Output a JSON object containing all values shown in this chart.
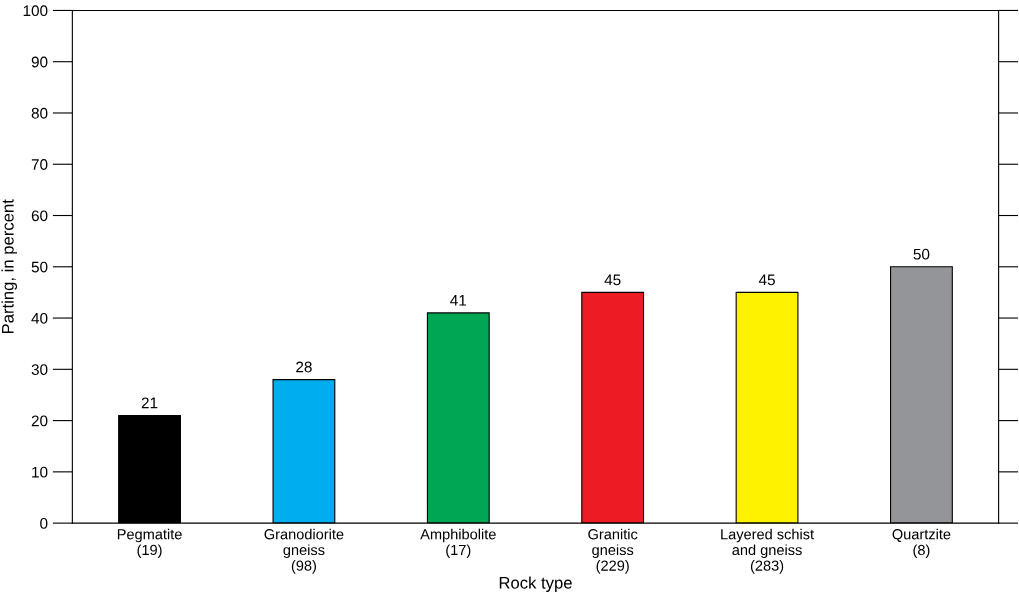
{
  "chart_data": {
    "type": "bar",
    "xlabel": "Rock type",
    "ylabel": "Parting, in percent",
    "categories": [
      "Pegmatite\n(19)",
      "Granodiorite\ngneiss\n(98)",
      "Amphibolite\n(17)",
      "Granitic\ngneiss\n(229)",
      "Layered schist\nand gneiss\n(283)",
      "Quartzite\n(8)"
    ],
    "values": [
      21,
      28,
      41,
      45,
      45,
      50
    ],
    "colors": [
      "#000000",
      "#00aeef",
      "#00a651",
      "#ed1c24",
      "#fff200",
      "#939598"
    ],
    "data_labels": true,
    "ylim": [
      0,
      100
    ],
    "yticks": [
      0,
      10,
      20,
      30,
      40,
      50,
      60,
      70,
      80,
      90,
      100
    ],
    "grid": false,
    "legend": false
  }
}
